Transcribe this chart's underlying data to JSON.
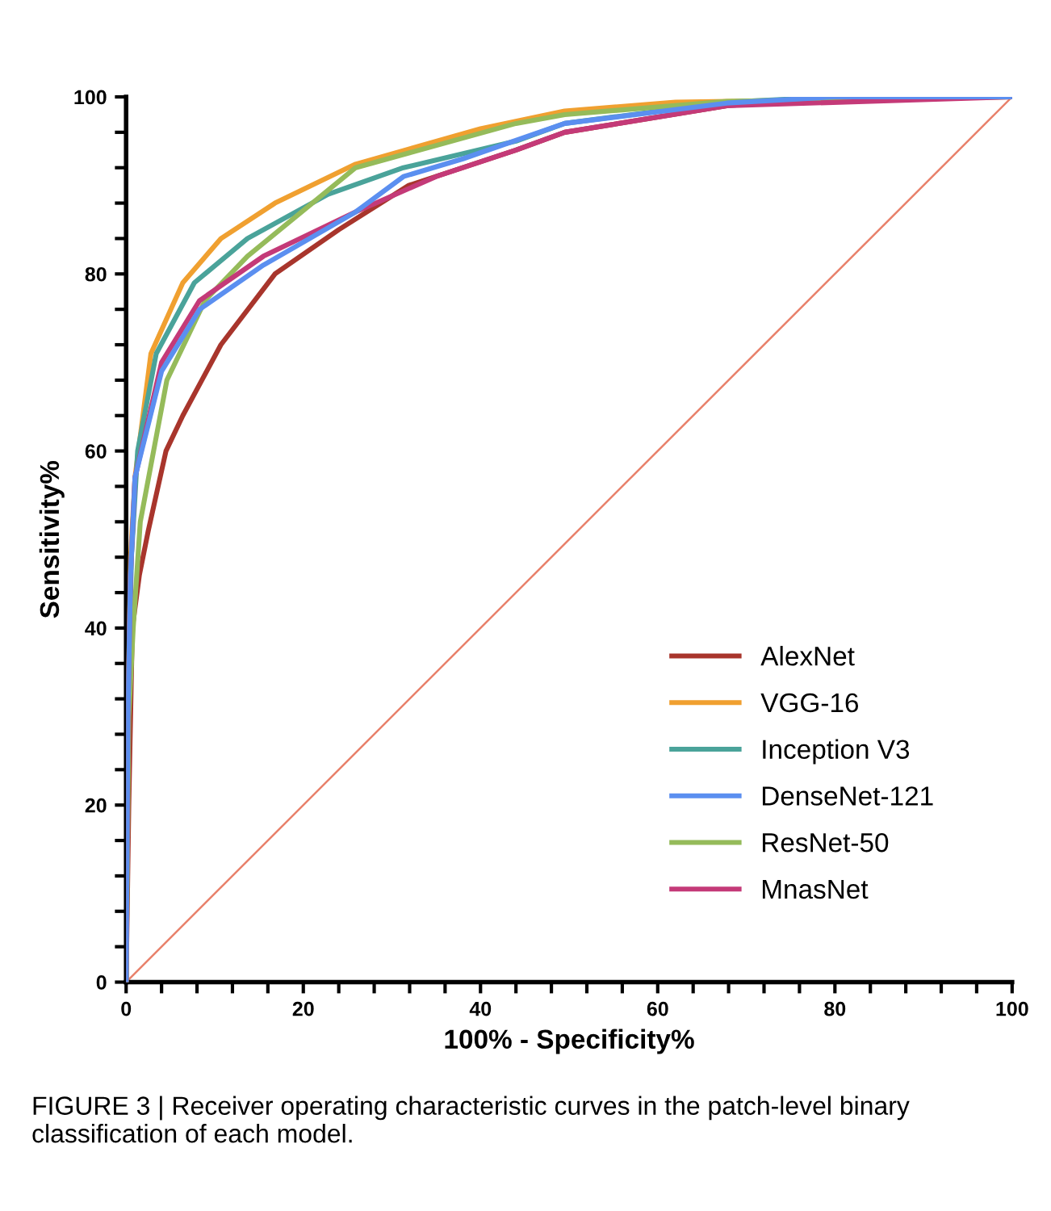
{
  "chart_data": {
    "type": "line",
    "xlabel": "100% - Specificity%",
    "ylabel": "Sensitivity%",
    "xlim": [
      0,
      100
    ],
    "ylim": [
      0,
      100
    ],
    "xticks": [
      0,
      {
        "value": 4,
        "label": null
      },
      {
        "value": 8,
        "label": null
      },
      {
        "value": 12,
        "label": null
      },
      {
        "value": 16,
        "label": null
      },
      20,
      {
        "value": 24,
        "label": null
      },
      {
        "value": 28,
        "label": null
      },
      {
        "value": 32,
        "label": null
      },
      {
        "value": 36,
        "label": null
      },
      40,
      {
        "value": 44,
        "label": null
      },
      {
        "value": 48,
        "label": null
      },
      {
        "value": 52,
        "label": null
      },
      {
        "value": 56,
        "label": null
      },
      60,
      {
        "value": 64,
        "label": null
      },
      {
        "value": 68,
        "label": null
      },
      {
        "value": 72,
        "label": null
      },
      {
        "value": 76,
        "label": null
      },
      80,
      {
        "value": 84,
        "label": null
      },
      {
        "value": 88,
        "label": null
      },
      {
        "value": 92,
        "label": null
      },
      {
        "value": 96,
        "label": null
      },
      100
    ],
    "yticks": [
      0,
      {
        "value": 4,
        "label": null
      },
      {
        "value": 8,
        "label": null
      },
      {
        "value": 12,
        "label": null
      },
      {
        "value": 16,
        "label": null
      },
      20,
      {
        "value": 24,
        "label": null
      },
      {
        "value": 28,
        "label": null
      },
      {
        "value": 32,
        "label": null
      },
      {
        "value": 36,
        "label": null
      },
      40,
      {
        "value": 44,
        "label": null
      },
      {
        "value": 48,
        "label": null
      },
      {
        "value": 52,
        "label": null
      },
      {
        "value": 56,
        "label": null
      },
      60,
      {
        "value": 64,
        "label": null
      },
      {
        "value": 68,
        "label": null
      },
      {
        "value": 72,
        "label": null
      },
      {
        "value": 76,
        "label": null
      },
      80,
      {
        "value": 84,
        "label": null
      },
      {
        "value": 88,
        "label": null
      },
      {
        "value": 92,
        "label": null
      },
      {
        "value": 96,
        "label": null
      },
      100
    ],
    "grid": false,
    "legend": "bottom right",
    "marker": "none",
    "line_style": "solid",
    "annotations": [
      "FIGURE 3 | Receiver operating characteristic curves in the patch-level binary classification of each model."
    ],
    "series": [
      {
        "name": "AlexNet",
        "color": "#a8352c",
        "x": [
          0,
          0.3,
          0.7,
          1.5,
          2.5,
          4.5,
          6.4,
          10.7,
          16.8,
          24,
          31.9,
          44,
          49.5,
          67.8,
          80,
          100
        ],
        "values": [
          0,
          20,
          40,
          46,
          51,
          60,
          64,
          72,
          80,
          85,
          90,
          94,
          96,
          99,
          100,
          100
        ]
      },
      {
        "name": "VGG-16",
        "color": "#f0a030",
        "x": [
          0,
          0.2,
          0.5,
          1,
          2.8,
          6.4,
          10.7,
          16.8,
          25.9,
          40,
          49.5,
          62,
          100
        ],
        "values": [
          0,
          30,
          48,
          57,
          71,
          79,
          84,
          88,
          92.4,
          96.4,
          98.4,
          99.4,
          100
        ]
      },
      {
        "name": "Inception V3",
        "color": "#4aa39a",
        "x": [
          0,
          0.2,
          0.6,
          1.3,
          3.4,
          7.7,
          13.7,
          22.8,
          31.3,
          44,
          49.5,
          67.8,
          80,
          100
        ],
        "values": [
          0,
          30,
          48,
          60,
          71,
          79,
          84,
          89,
          92,
          95,
          97,
          99.4,
          100,
          100
        ]
      },
      {
        "name": "DenseNet-121",
        "color": "#5b8ff0",
        "x": [
          0,
          0.2,
          0.5,
          1,
          4,
          8.3,
          15.5,
          25.9,
          31.3,
          38,
          49.5,
          67.8,
          80,
          100
        ],
        "values": [
          0,
          30,
          46,
          57,
          69,
          76,
          81,
          87,
          91,
          93,
          97,
          99.3,
          100,
          100
        ]
      },
      {
        "name": "ResNet-50",
        "color": "#95bb5a",
        "x": [
          0,
          0.3,
          0.8,
          1.6,
          4.6,
          8.9,
          13.7,
          25.9,
          44,
          49.5,
          67.8,
          100
        ],
        "values": [
          0,
          30,
          40,
          52,
          68,
          77,
          82,
          92,
          97,
          98,
          99.5,
          100
        ]
      },
      {
        "name": "MnasNet",
        "color": "#c43a78",
        "x": [
          0,
          0.2,
          0.5,
          1,
          4,
          8.3,
          15.5,
          25.9,
          35,
          44,
          49.5,
          67.8,
          100
        ],
        "values": [
          0,
          30,
          46,
          57,
          70,
          77,
          82,
          87,
          91,
          94,
          96,
          99,
          100
        ]
      },
      {
        "color": "#e8806a",
        "x": [
          0,
          100
        ],
        "values": [
          0,
          100
        ]
      }
    ]
  }
}
